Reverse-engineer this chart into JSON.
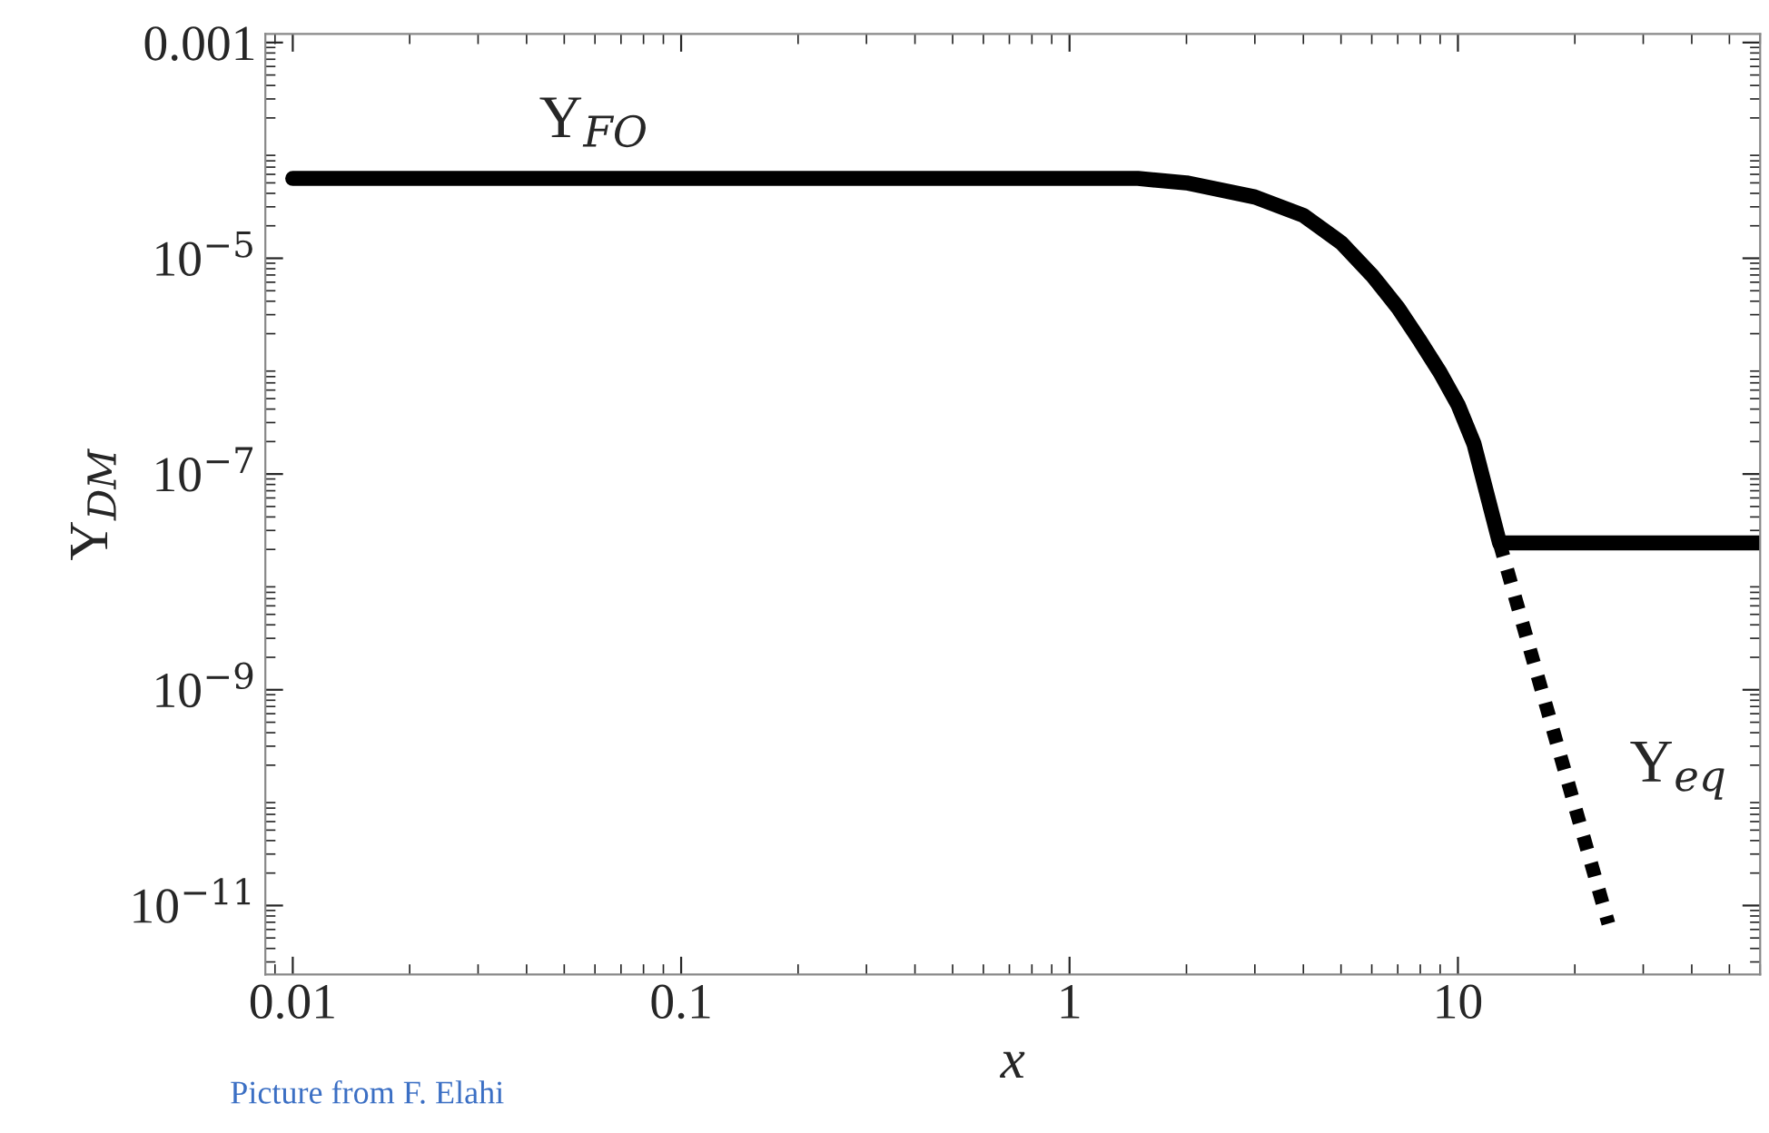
{
  "chart_data": {
    "type": "line",
    "xlabel": "x",
    "ylabel": "Y$_{DM}$",
    "log": "xy",
    "x": [
      0.01,
      1.5,
      2,
      3,
      4,
      5,
      6,
      7,
      8,
      9,
      10,
      11,
      12.8,
      60
    ],
    "series": [
      {
        "name": "Y$_{FO}$",
        "color": "#000000",
        "line_style": "solid",
        "values": [
          5.5e-05,
          5.5e-05,
          5e-05,
          3.7e-05,
          2.5e-05,
          1.4e-05,
          7e-06,
          3.5e-06,
          1.7e-06,
          8.7e-07,
          4.4e-07,
          1.9e-07,
          2.3e-08,
          2.3e-08
        ]
      },
      {
        "name": "Y$_{eq}$",
        "color": "#000000",
        "line_style": "dotted",
        "x": [
          12.8,
          24.4
        ],
        "values": [
          2.3e-08,
          6.8e-12
        ]
      }
    ],
    "xlim": [
      0.0085,
      60
    ],
    "ylim": [
      2.3e-12,
      0.0012
    ],
    "xticks": [
      0.01,
      0.1,
      1,
      10
    ],
    "yticks": [
      {
        "value": 0.001,
        "label": "0.001"
      },
      {
        "value": 1e-05,
        "label": "10$^{−5}$"
      },
      {
        "value": 1e-07,
        "label": "10$^{−7}$"
      },
      {
        "value": 1e-09,
        "label": "10$^{−9}$"
      },
      {
        "value": 1e-11,
        "label": "10$^{−11}$"
      }
    ],
    "grid": false,
    "legend": false,
    "annotations": [
      "Picture from F. Elahi"
    ]
  }
}
